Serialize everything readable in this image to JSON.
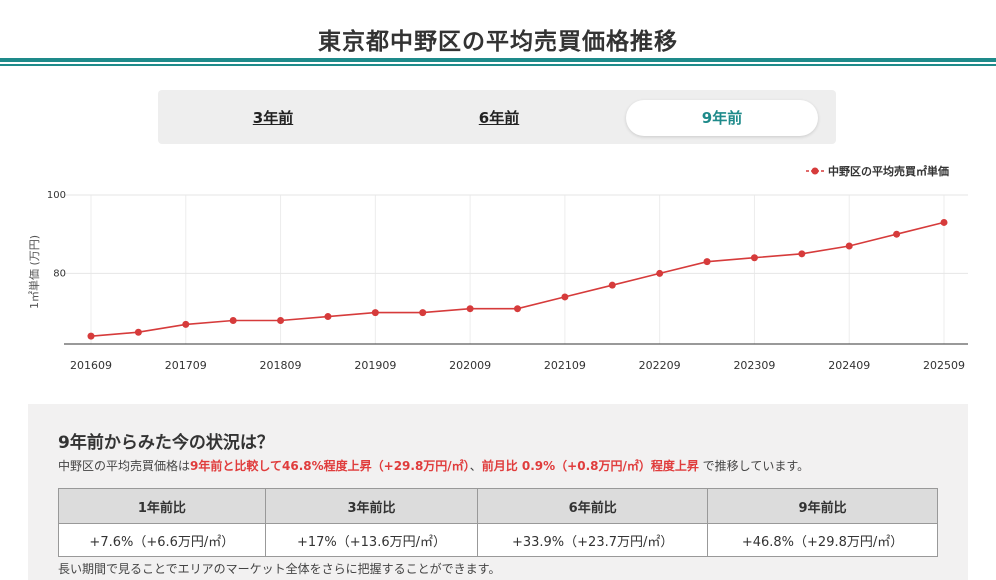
{
  "page": {
    "title": "東京都中野区の平均売買価格推移"
  },
  "tabs": [
    {
      "label": "3年前",
      "active": false
    },
    {
      "label": "6年前",
      "active": false
    },
    {
      "label": "9年前",
      "active": true
    }
  ],
  "colors": {
    "accent": "#1e8a8a",
    "series": "#d63b3b",
    "highlight": "#e03c3c"
  },
  "chart_data": {
    "type": "line",
    "ylabel": "1㎡単価 (万円)",
    "xlabel": "",
    "ylim": [
      62,
      100
    ],
    "yticks": [
      80,
      100
    ],
    "grid": true,
    "legend_position": "top-right",
    "x_tick_labels": [
      "201609",
      "201709",
      "201809",
      "201909",
      "202009",
      "202109",
      "202209",
      "202309",
      "202409",
      "202509"
    ],
    "series": [
      {
        "name": "中野区の平均売買㎡単価",
        "x": [
          "201609",
          "201703",
          "201709",
          "201803",
          "201809",
          "201903",
          "201909",
          "202003",
          "202009",
          "202103",
          "202109",
          "202203",
          "202209",
          "202303",
          "202309",
          "202403",
          "202409",
          "202503",
          "202509"
        ],
        "values": [
          64,
          65,
          67,
          68,
          68,
          69,
          70,
          70,
          71,
          71,
          74,
          77,
          80,
          83,
          84,
          85,
          87,
          90,
          93
        ]
      }
    ]
  },
  "summary": {
    "heading": "9年前からみた今の状況は？",
    "text_prefix": "中野区の平均売買価格は",
    "text_highlight1": "9年前と比較して46.8%程度上昇（+29.8万円/㎡）",
    "text_sep": "、",
    "text_highlight2": "前月比 0.9%（+0.8万円/㎡）程度上昇",
    "text_suffix": " で推移しています。",
    "table_headers": [
      "1年前比",
      "3年前比",
      "6年前比",
      "9年前比"
    ],
    "table_values": [
      "+7.6%（+6.6万円/㎡）",
      "+17%（+13.6万円/㎡）",
      "+33.9%（+23.7万円/㎡）",
      "+46.8%（+29.8万円/㎡）"
    ],
    "footer": "長い期間で見ることでエリアのマーケット全体をさらに把握することができます。"
  }
}
